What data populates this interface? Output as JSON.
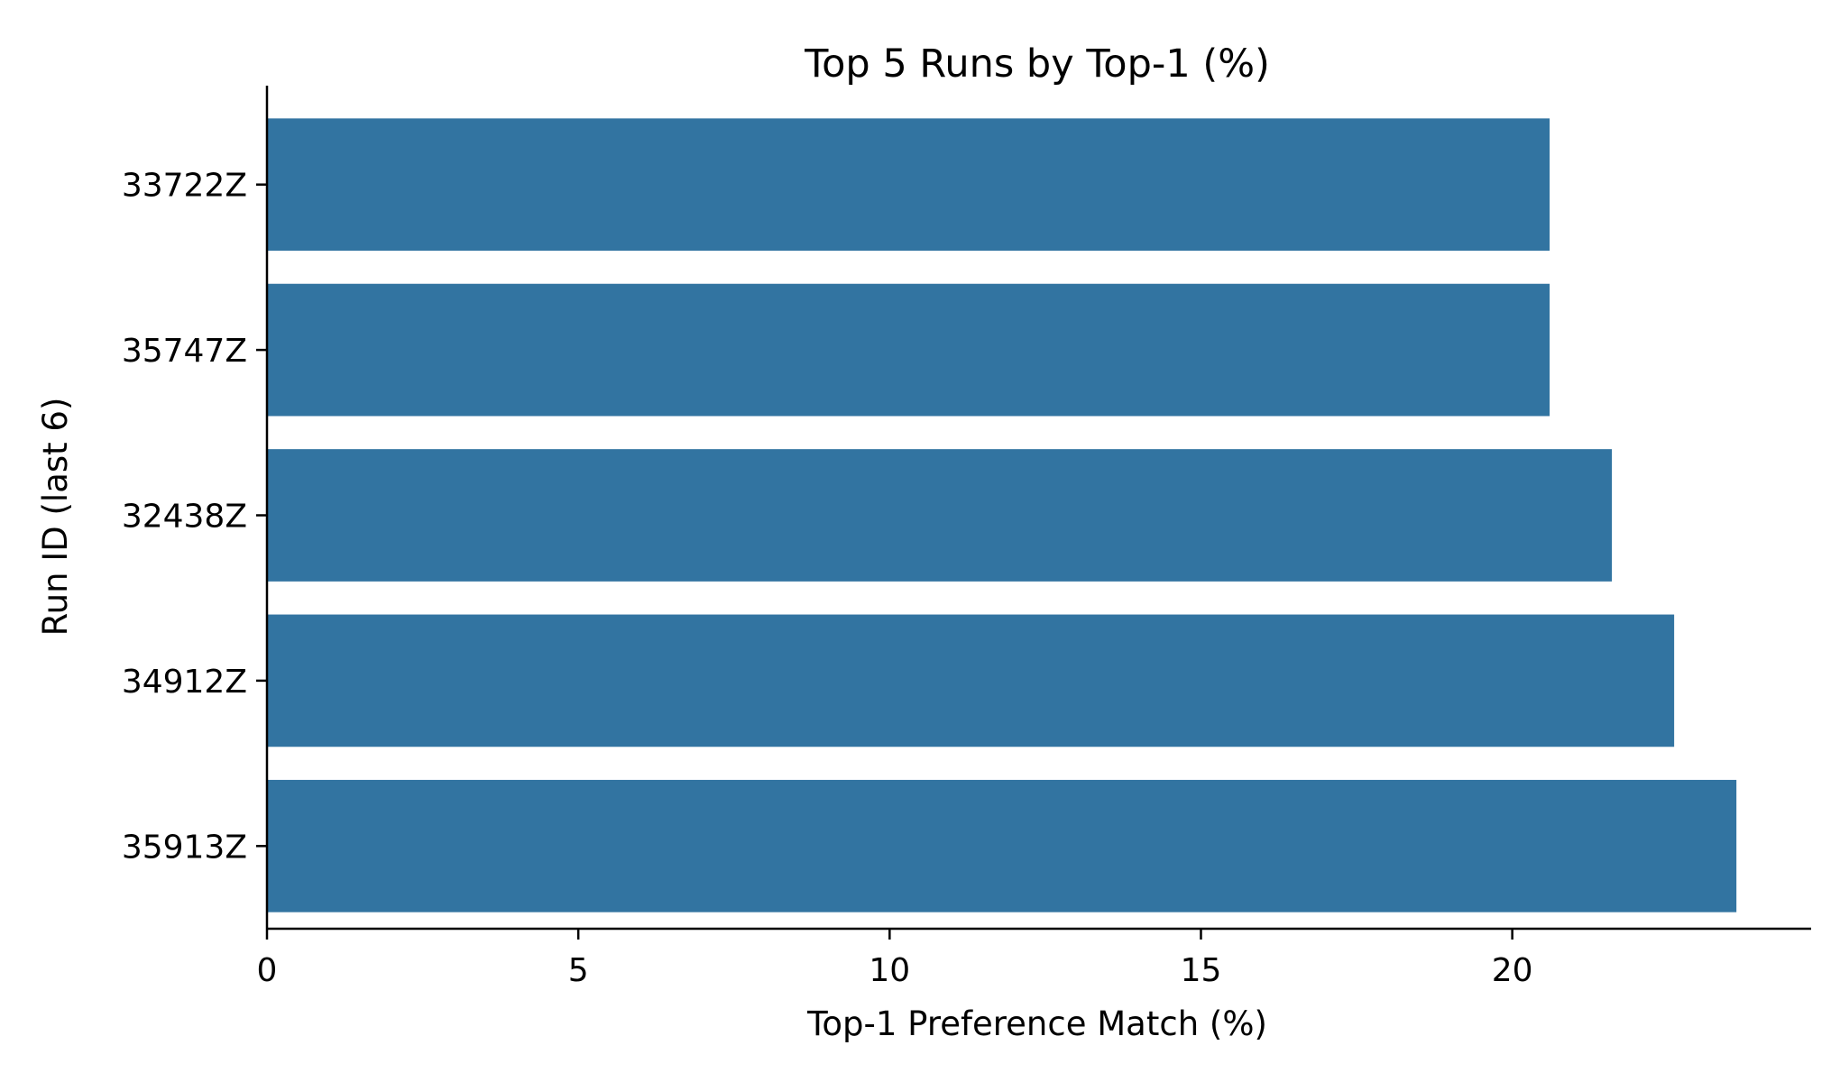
{
  "chart_data": {
    "type": "bar",
    "orientation": "horizontal",
    "title": "Top 5 Runs by Top-1 (%)",
    "xlabel": "Top-1 Preference Match (%)",
    "ylabel": "Run ID (last 6)",
    "categories": [
      "33722Z",
      "35747Z",
      "32438Z",
      "34912Z",
      "35913Z"
    ],
    "values": [
      20.6,
      20.6,
      21.6,
      22.6,
      23.6
    ],
    "xlim": [
      0,
      24.8
    ],
    "xticks": [
      0,
      5,
      10,
      15,
      20
    ],
    "bar_color": "#3274a1",
    "grid": false
  }
}
